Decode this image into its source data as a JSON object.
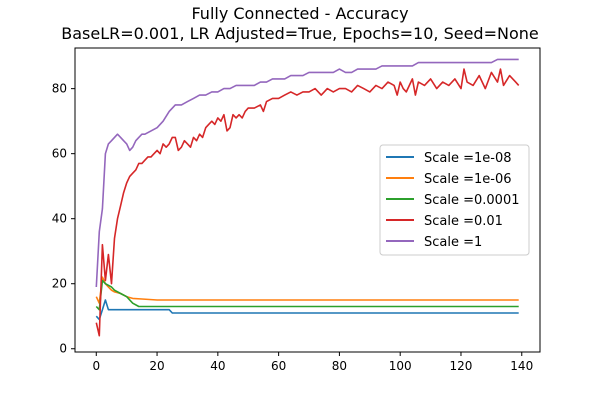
{
  "chart_data": {
    "type": "line",
    "title": "Fully Connected - Accuracy",
    "subtitle": "BaseLR=0.001, LR Adjusted=True, Epochs=10, Seed=None",
    "xlabel": "",
    "ylabel": "",
    "xlim": [
      -7,
      146
    ],
    "ylim": [
      -1,
      92.5
    ],
    "xticks": [
      0,
      20,
      40,
      60,
      80,
      100,
      120,
      140
    ],
    "yticks": [
      0,
      20,
      40,
      60,
      80
    ],
    "grid": false,
    "legend_position": "center-right",
    "series": [
      {
        "name": "Scale =1e-08",
        "color": "#1f77b4",
        "points": [
          [
            0,
            10
          ],
          [
            1,
            9
          ],
          [
            2,
            12
          ],
          [
            3,
            15
          ],
          [
            4,
            12
          ],
          [
            10,
            12
          ],
          [
            20,
            12
          ],
          [
            24,
            12
          ],
          [
            25,
            11
          ],
          [
            139,
            11
          ]
        ]
      },
      {
        "name": "Scale =1e-06",
        "color": "#ff7f0e",
        "points": [
          [
            0,
            16
          ],
          [
            1,
            14
          ],
          [
            2,
            22
          ],
          [
            3,
            20
          ],
          [
            4,
            19
          ],
          [
            5,
            18
          ],
          [
            6,
            17.5
          ],
          [
            8,
            17
          ],
          [
            10,
            16
          ],
          [
            12,
            15.5
          ],
          [
            15,
            15.3
          ],
          [
            20,
            15
          ],
          [
            139,
            15
          ]
        ]
      },
      {
        "name": "Scale =0.0001",
        "color": "#2ca02c",
        "points": [
          [
            0,
            13
          ],
          [
            1,
            12
          ],
          [
            2,
            21
          ],
          [
            3,
            20
          ],
          [
            4,
            19.5
          ],
          [
            5,
            19
          ],
          [
            6,
            18
          ],
          [
            8,
            17
          ],
          [
            10,
            16
          ],
          [
            12,
            14
          ],
          [
            14,
            13
          ],
          [
            20,
            13
          ],
          [
            139,
            13
          ]
        ]
      },
      {
        "name": "Scale =0.01",
        "color": "#d62728",
        "points": [
          [
            0,
            8
          ],
          [
            1,
            4
          ],
          [
            2,
            32
          ],
          [
            3,
            21
          ],
          [
            4,
            29
          ],
          [
            5,
            20
          ],
          [
            6,
            34
          ],
          [
            7,
            40
          ],
          [
            8,
            44
          ],
          [
            9,
            48
          ],
          [
            10,
            51
          ],
          [
            11,
            53
          ],
          [
            12,
            54
          ],
          [
            13,
            55
          ],
          [
            14,
            57
          ],
          [
            15,
            57
          ],
          [
            16,
            58
          ],
          [
            17,
            59
          ],
          [
            18,
            59
          ],
          [
            19,
            60
          ],
          [
            20,
            61
          ],
          [
            21,
            60
          ],
          [
            22,
            63
          ],
          [
            23,
            62
          ],
          [
            24,
            63
          ],
          [
            25,
            65
          ],
          [
            26,
            65
          ],
          [
            27,
            61
          ],
          [
            28,
            62
          ],
          [
            29,
            64
          ],
          [
            30,
            63
          ],
          [
            31,
            62
          ],
          [
            32,
            65
          ],
          [
            33,
            64
          ],
          [
            34,
            66
          ],
          [
            35,
            65
          ],
          [
            36,
            68
          ],
          [
            37,
            69
          ],
          [
            38,
            70
          ],
          [
            39,
            69
          ],
          [
            40,
            71
          ],
          [
            41,
            70
          ],
          [
            42,
            72
          ],
          [
            43,
            67
          ],
          [
            44,
            68
          ],
          [
            45,
            72
          ],
          [
            46,
            71
          ],
          [
            47,
            72
          ],
          [
            48,
            71
          ],
          [
            49,
            73
          ],
          [
            50,
            74
          ],
          [
            52,
            74
          ],
          [
            54,
            75
          ],
          [
            55,
            73
          ],
          [
            56,
            76
          ],
          [
            58,
            77
          ],
          [
            60,
            77
          ],
          [
            62,
            78
          ],
          [
            64,
            79
          ],
          [
            66,
            78
          ],
          [
            68,
            79
          ],
          [
            70,
            79
          ],
          [
            72,
            80
          ],
          [
            74,
            78
          ],
          [
            75,
            79
          ],
          [
            76,
            80
          ],
          [
            78,
            79
          ],
          [
            80,
            80
          ],
          [
            82,
            80
          ],
          [
            84,
            79
          ],
          [
            86,
            81
          ],
          [
            88,
            80
          ],
          [
            90,
            79
          ],
          [
            92,
            81
          ],
          [
            94,
            80
          ],
          [
            96,
            82
          ],
          [
            98,
            81
          ],
          [
            99,
            78
          ],
          [
            100,
            82
          ],
          [
            101,
            80
          ],
          [
            102,
            79
          ],
          [
            104,
            83
          ],
          [
            105,
            78
          ],
          [
            106,
            82
          ],
          [
            108,
            81
          ],
          [
            110,
            83
          ],
          [
            112,
            80
          ],
          [
            114,
            82
          ],
          [
            116,
            81
          ],
          [
            118,
            83
          ],
          [
            120,
            80
          ],
          [
            121,
            86
          ],
          [
            122,
            82
          ],
          [
            124,
            81
          ],
          [
            126,
            84
          ],
          [
            128,
            80
          ],
          [
            130,
            85
          ],
          [
            132,
            82
          ],
          [
            133,
            86
          ],
          [
            134,
            81
          ],
          [
            136,
            84
          ],
          [
            138,
            82
          ],
          [
            139,
            81
          ]
        ]
      },
      {
        "name": "Scale =1",
        "color": "#9467bd",
        "points": [
          [
            0,
            19
          ],
          [
            1,
            36
          ],
          [
            2,
            43
          ],
          [
            3,
            60
          ],
          [
            4,
            63
          ],
          [
            5,
            64
          ],
          [
            6,
            65
          ],
          [
            7,
            66
          ],
          [
            8,
            65
          ],
          [
            9,
            64
          ],
          [
            10,
            63
          ],
          [
            11,
            61
          ],
          [
            12,
            62
          ],
          [
            13,
            64
          ],
          [
            14,
            65
          ],
          [
            15,
            66
          ],
          [
            16,
            66
          ],
          [
            18,
            67
          ],
          [
            20,
            68
          ],
          [
            22,
            70
          ],
          [
            24,
            73
          ],
          [
            26,
            75
          ],
          [
            28,
            75
          ],
          [
            30,
            76
          ],
          [
            32,
            77
          ],
          [
            34,
            78
          ],
          [
            36,
            78
          ],
          [
            38,
            79
          ],
          [
            40,
            79
          ],
          [
            42,
            80
          ],
          [
            44,
            80
          ],
          [
            46,
            81
          ],
          [
            48,
            81
          ],
          [
            50,
            81
          ],
          [
            52,
            81
          ],
          [
            54,
            82
          ],
          [
            56,
            82
          ],
          [
            58,
            83
          ],
          [
            60,
            83
          ],
          [
            62,
            83
          ],
          [
            64,
            84
          ],
          [
            66,
            84
          ],
          [
            68,
            84
          ],
          [
            70,
            85
          ],
          [
            72,
            85
          ],
          [
            74,
            85
          ],
          [
            76,
            85
          ],
          [
            78,
            85
          ],
          [
            80,
            86
          ],
          [
            82,
            85
          ],
          [
            84,
            85
          ],
          [
            86,
            86
          ],
          [
            88,
            86
          ],
          [
            90,
            86
          ],
          [
            92,
            86
          ],
          [
            94,
            87
          ],
          [
            96,
            87
          ],
          [
            98,
            87
          ],
          [
            100,
            87
          ],
          [
            102,
            87
          ],
          [
            104,
            87
          ],
          [
            106,
            88
          ],
          [
            108,
            88
          ],
          [
            110,
            88
          ],
          [
            112,
            88
          ],
          [
            114,
            88
          ],
          [
            116,
            88
          ],
          [
            118,
            88
          ],
          [
            120,
            88
          ],
          [
            122,
            88
          ],
          [
            124,
            88
          ],
          [
            126,
            88
          ],
          [
            128,
            88
          ],
          [
            130,
            88
          ],
          [
            132,
            89
          ],
          [
            134,
            89
          ],
          [
            136,
            89
          ],
          [
            138,
            89
          ],
          [
            139,
            89
          ]
        ]
      }
    ]
  }
}
